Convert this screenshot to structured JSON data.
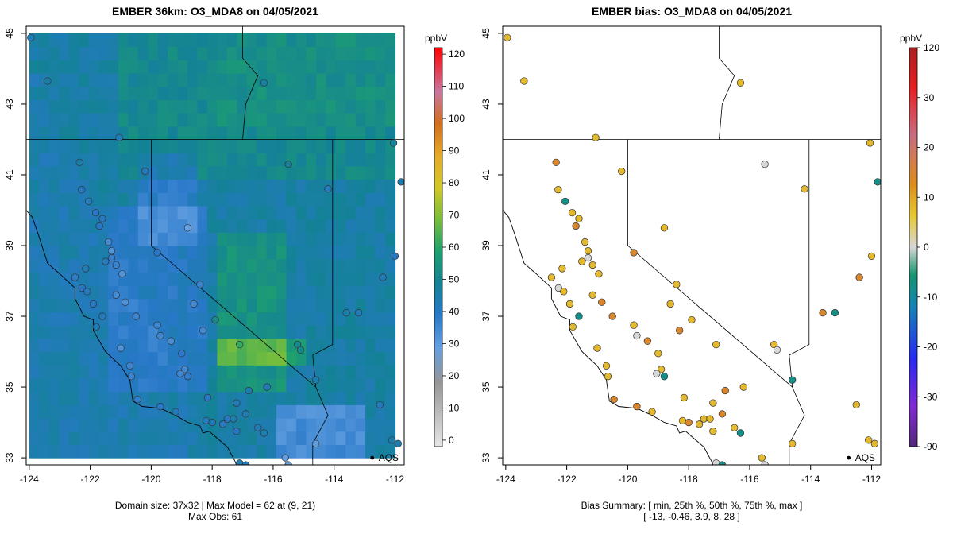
{
  "chart_data": [
    {
      "type": "heatmap",
      "title": "EMBER 36km: O3_MDA8 on 04/05/2021",
      "xlim": [
        -124.1,
        -111.7
      ],
      "ylim": [
        32.8,
        45.2
      ],
      "field_extent": {
        "lon": [
          -124.0,
          -112.0
        ],
        "lat": [
          33.0,
          45.0
        ]
      },
      "grid": {
        "cols": 37,
        "rows": 32
      },
      "x_ticks": [
        "-124",
        "-122",
        "-120",
        "-118",
        "-116",
        "-114",
        "-112"
      ],
      "y_ticks": [
        "33",
        "35",
        "37",
        "39",
        "41",
        "43",
        "45"
      ],
      "colorbar": {
        "label": "ppbV",
        "ticks": [
          "0",
          "10",
          "20",
          "30",
          "40",
          "50",
          "60",
          "70",
          "80",
          "90",
          "100",
          "110",
          "120"
        ],
        "range": [
          -2,
          122
        ]
      },
      "caption_line1": "Domain size: 37x32 | Max Model = 62 at (9, 21)",
      "caption_line2": "Max Obs: 61",
      "aqs_label": "AQS",
      "summary": {
        "max_model": 62,
        "max_model_cell": [
          9,
          21
        ],
        "max_obs": 61,
        "domain": "37x32"
      }
    },
    {
      "type": "scatter",
      "title": "EMBER bias: O3_MDA8 on 04/05/2021",
      "xlim": [
        -124.1,
        -111.7
      ],
      "ylim": [
        32.8,
        45.2
      ],
      "x_ticks": [
        "-124",
        "-122",
        "-120",
        "-118",
        "-116",
        "-114",
        "-112"
      ],
      "y_ticks": [
        "33",
        "35",
        "37",
        "39",
        "41",
        "43",
        "45"
      ],
      "colorbar": {
        "label": "ppbV",
        "ticks": [
          "120",
          "30",
          "20",
          "10",
          "0",
          "-10",
          "-20",
          "-30",
          "-90"
        ]
      },
      "caption_line1": "Bias Summary: [ min, 25th %, 50th %, 75th %, max ]",
      "caption_line2": "[ -13,  -0.46,  3.9,  8,  28 ]",
      "aqs_label": "AQS",
      "bias_summary": {
        "min": -13,
        "p25": -0.46,
        "median": 3.9,
        "p75": 8,
        "max": 28
      }
    }
  ],
  "map_features": {
    "borders": [
      [
        [
          -120.0,
          42.0
        ],
        [
          -120.0,
          39.0
        ],
        [
          -114.6,
          35.0
        ]
      ],
      [
        [
          -124.2,
          42.0
        ],
        [
          -111.0,
          42.0
        ]
      ],
      [
        [
          -117.0,
          45.5
        ],
        [
          -117.0,
          44.3
        ],
        [
          -116.5,
          43.8
        ],
        [
          -116.9,
          43.0
        ],
        [
          -117.0,
          42.0
        ]
      ],
      [
        [
          -114.05,
          42.0
        ],
        [
          -114.05,
          37.0
        ]
      ],
      [
        [
          -114.05,
          37.0
        ],
        [
          -114.05,
          36.2
        ],
        [
          -114.7,
          35.9
        ],
        [
          -114.6,
          35.0
        ]
      ],
      [
        [
          -114.6,
          35.0
        ],
        [
          -114.2,
          34.2
        ],
        [
          -114.7,
          33.4
        ],
        [
          -114.7,
          32.7
        ]
      ],
      [
        [
          -117.1,
          32.53
        ],
        [
          -114.8,
          32.5
        ],
        [
          -111.0,
          31.33
        ]
      ],
      [
        [
          -111.05,
          42.0
        ],
        [
          -111.05,
          45.5
        ]
      ]
    ],
    "coast": [
      [
        -124.2,
        45.2
      ],
      [
        -124.1,
        44.5
      ],
      [
        -124.1,
        43.9
      ],
      [
        -124.2,
        43.5
      ],
      [
        -124.4,
        43.0
      ],
      [
        -124.5,
        42.5
      ],
      [
        -124.2,
        42.0
      ],
      [
        -124.1,
        41.5
      ],
      [
        -124.2,
        41.0
      ],
      [
        -124.3,
        40.5
      ],
      [
        -124.4,
        40.3
      ],
      [
        -123.9,
        39.8
      ],
      [
        -123.7,
        39.3
      ],
      [
        -123.4,
        38.5
      ],
      [
        -123.0,
        38.2
      ],
      [
        -122.5,
        37.8
      ],
      [
        -122.5,
        37.5
      ],
      [
        -122.2,
        37.0
      ],
      [
        -121.9,
        36.9
      ],
      [
        -121.9,
        36.6
      ],
      [
        -121.5,
        36.0
      ],
      [
        -121.0,
        35.6
      ],
      [
        -120.7,
        35.2
      ],
      [
        -120.6,
        34.6
      ],
      [
        -120.3,
        34.45
      ],
      [
        -119.7,
        34.4
      ],
      [
        -119.2,
        34.2
      ],
      [
        -118.8,
        34.0
      ],
      [
        -118.4,
        33.9
      ],
      [
        -118.3,
        33.7
      ],
      [
        -118.1,
        33.75
      ],
      [
        -117.9,
        33.6
      ],
      [
        -117.5,
        33.3
      ],
      [
        -117.25,
        32.9
      ],
      [
        -117.1,
        32.53
      ]
    ],
    "baja_coast": [
      [
        -117.1,
        32.53
      ],
      [
        -116.9,
        32.0
      ],
      [
        -116.4,
        31.0
      ]
    ],
    "gulf_coast": [
      [
        -114.8,
        32.5
      ],
      [
        -114.7,
        31.8
      ],
      [
        -114.9,
        31.2
      ]
    ]
  },
  "stations": [
    [
      -123.95,
      44.88
    ],
    [
      -123.4,
      43.65
    ],
    [
      -121.05,
      42.05
    ],
    [
      -120.2,
      41.1
    ],
    [
      -122.35,
      41.35
    ],
    [
      -122.28,
      40.58
    ],
    [
      -122.05,
      40.25
    ],
    [
      -121.82,
      39.93
    ],
    [
      -121.6,
      39.76
    ],
    [
      -121.7,
      39.55
    ],
    [
      -121.4,
      39.1
    ],
    [
      -121.3,
      38.85
    ],
    [
      -121.5,
      38.55
    ],
    [
      -121.3,
      38.65
    ],
    [
      -121.15,
      38.45
    ],
    [
      -120.95,
      38.2
    ],
    [
      -122.15,
      38.35
    ],
    [
      -122.5,
      38.1
    ],
    [
      -122.27,
      37.8
    ],
    [
      -122.1,
      37.7
    ],
    [
      -121.9,
      37.35
    ],
    [
      -121.6,
      37.0
    ],
    [
      -121.8,
      36.7
    ],
    [
      -121.15,
      37.6
    ],
    [
      -120.85,
      37.4
    ],
    [
      -120.5,
      37.0
    ],
    [
      -119.8,
      36.75
    ],
    [
      -119.7,
      36.45
    ],
    [
      -119.35,
      36.3
    ],
    [
      -119.0,
      35.95
    ],
    [
      -118.9,
      35.5
    ],
    [
      -118.8,
      35.3
    ],
    [
      -119.05,
      35.38
    ],
    [
      -118.15,
      34.7
    ],
    [
      -118.2,
      34.05
    ],
    [
      -118.0,
      34.0
    ],
    [
      -117.5,
      34.1
    ],
    [
      -117.3,
      34.1
    ],
    [
      -116.9,
      34.24
    ],
    [
      -117.65,
      33.95
    ],
    [
      -117.2,
      33.75
    ],
    [
      -116.5,
      33.85
    ],
    [
      -116.3,
      33.7
    ],
    [
      -117.1,
      32.85
    ],
    [
      -116.9,
      32.8
    ],
    [
      -116.9,
      32.6
    ],
    [
      -115.5,
      32.8
    ],
    [
      -115.6,
      33.0
    ],
    [
      -114.6,
      33.4
    ],
    [
      -119.2,
      34.3
    ],
    [
      -119.7,
      34.45
    ],
    [
      -120.45,
      34.65
    ],
    [
      -120.65,
      35.3
    ],
    [
      -120.7,
      35.6
    ],
    [
      -121.0,
      36.1
    ],
    [
      -118.6,
      37.35
    ],
    [
      -118.3,
      36.6
    ],
    [
      -117.9,
      36.9
    ],
    [
      -118.4,
      37.9
    ],
    [
      -119.8,
      38.8
    ],
    [
      -118.8,
      39.5
    ],
    [
      -117.1,
      36.2
    ],
    [
      -115.2,
      36.2
    ],
    [
      -115.1,
      36.05
    ],
    [
      -114.6,
      35.2
    ],
    [
      -116.2,
      35.0
    ],
    [
      -116.8,
      34.9
    ],
    [
      -117.2,
      34.55
    ],
    [
      -112.5,
      34.5
    ],
    [
      -112.1,
      33.5
    ],
    [
      -111.9,
      33.4
    ],
    [
      -114.2,
      40.6
    ],
    [
      -115.5,
      41.3
    ],
    [
      -112.4,
      38.1
    ],
    [
      -112.0,
      38.7
    ],
    [
      -111.8,
      40.8
    ],
    [
      -112.05,
      41.9
    ],
    [
      -116.3,
      43.6
    ],
    [
      -113.6,
      37.1
    ],
    [
      -113.2,
      37.1
    ]
  ]
}
